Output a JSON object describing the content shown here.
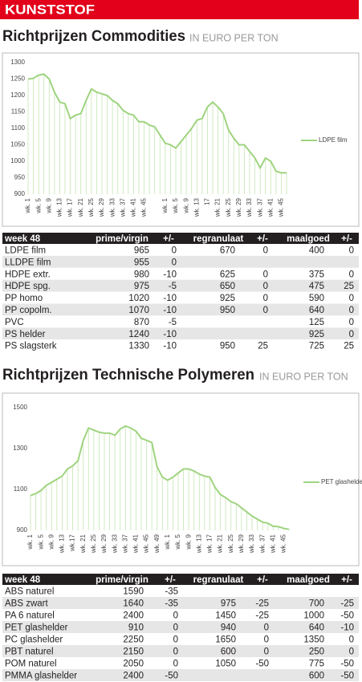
{
  "header": "KUNSTSTOF",
  "chart_data": [
    {
      "type": "line",
      "title": "Richtprijzen Commodities",
      "subtitle": "IN EURO PER TON",
      "categories": [
        "wk. 1",
        null,
        "wk. 5",
        null,
        "wk. 9",
        null,
        "wk. 13",
        null,
        "wk. 17",
        null,
        "wk. 21",
        null,
        "wk. 25",
        null,
        "wk. 29",
        null,
        "wk. 33",
        null,
        "wk. 37",
        null,
        "wk. 41",
        null,
        "wk. 45",
        null,
        null,
        null,
        "wk. 1",
        null,
        "wk. 5",
        null,
        "wk. 9",
        null,
        "wk. 13",
        null,
        "17",
        null,
        "wk. 21",
        null,
        "wk. 25",
        null,
        "wk. 29",
        null,
        "wk. 33",
        null,
        "wk. 37",
        null,
        "wk. 41",
        null,
        "wk. 45",
        null
      ],
      "series": [
        {
          "name": "LDPE film",
          "color": "#9fd47f",
          "values": [
            1250,
            1252,
            1262,
            1265,
            1250,
            1210,
            1180,
            1175,
            1130,
            1140,
            1145,
            1185,
            1220,
            1210,
            1205,
            1200,
            1185,
            1175,
            1155,
            1145,
            1140,
            1120,
            1120,
            1110,
            1105,
            1080,
            1055,
            1050,
            1040,
            1060,
            1080,
            1100,
            1125,
            1130,
            1165,
            1180,
            1165,
            1145,
            1095,
            1070,
            1050,
            1050,
            1030,
            1010,
            980,
            1010,
            1000,
            970,
            965,
            965
          ]
        }
      ],
      "ylim": [
        900,
        1300
      ],
      "yticks": [
        900,
        950,
        1000,
        1050,
        1100,
        1150,
        1200,
        1250,
        1300
      ],
      "legend": "right"
    },
    {
      "type": "line",
      "title": "Richtprijzen Technische Polymeren",
      "subtitle": "IN EURO PER TON",
      "categories": [
        "wk. 1",
        null,
        "wk. 5",
        null,
        "wk. 9",
        null,
        "wk. 13",
        null,
        "wk.17",
        null,
        "wk. 21",
        null,
        "wk. 25",
        null,
        "wk. 29",
        null,
        "wk. 33",
        null,
        "wk. 37",
        null,
        "wk. 41",
        null,
        "wk. 45",
        null,
        "wk. 49",
        null,
        "wk. 1",
        null,
        "wk. 5",
        null,
        "wk. 9",
        null,
        "wk. 13",
        null,
        "wk. 17",
        null,
        "wk. 21",
        null,
        "wk. 25",
        null,
        "wk. 29",
        null,
        "wk. 33",
        null,
        "wk. 37",
        null,
        "wk. 41",
        null,
        "wk. 45",
        null
      ],
      "series": [
        {
          "name": "PET glashelder",
          "color": "#9fd47f",
          "values": [
            1070,
            1080,
            1095,
            1120,
            1135,
            1150,
            1165,
            1200,
            1215,
            1240,
            1340,
            1400,
            1390,
            1380,
            1375,
            1375,
            1365,
            1395,
            1410,
            1400,
            1385,
            1350,
            1340,
            1330,
            1210,
            1160,
            1145,
            1160,
            1180,
            1200,
            1200,
            1190,
            1175,
            1165,
            1160,
            1110,
            1075,
            1060,
            1040,
            1030,
            1010,
            990,
            970,
            955,
            940,
            935,
            920,
            918,
            910,
            905
          ]
        }
      ],
      "ylim": [
        900,
        1500
      ],
      "yticks": [
        900,
        1100,
        1300,
        1500
      ],
      "legend": "right"
    }
  ],
  "tables": [
    {
      "columns": [
        "week 48",
        "prime/virgin",
        "+/-",
        "regranulaat",
        "+/-",
        "maalgoed",
        "+/-"
      ],
      "rows": [
        [
          "LDPE film",
          965,
          0,
          670,
          0,
          400,
          0
        ],
        [
          "LLDPE film",
          955,
          0,
          null,
          null,
          null,
          null
        ],
        [
          "HDPE extr.",
          980,
          -10,
          625,
          0,
          375,
          0
        ],
        [
          "HDPE spg.",
          975,
          -5,
          650,
          0,
          475,
          25
        ],
        [
          "PP homo",
          1020,
          -10,
          925,
          0,
          590,
          0
        ],
        [
          "PP copolm.",
          1070,
          -10,
          950,
          0,
          640,
          0
        ],
        [
          "PVC",
          870,
          -5,
          null,
          null,
          125,
          0
        ],
        [
          "PS helder",
          1240,
          -10,
          null,
          null,
          925,
          0
        ],
        [
          "PS slagsterk",
          1330,
          -10,
          950,
          25,
          725,
          25
        ]
      ]
    },
    {
      "columns": [
        "week 48",
        "prime/virgin",
        "+/-",
        "regranulaat",
        "+/-",
        "maalgoed",
        "+/-"
      ],
      "rows": [
        [
          "ABS naturel",
          1590,
          -35,
          null,
          null,
          null,
          null
        ],
        [
          "ABS zwart",
          1640,
          -35,
          975,
          -25,
          700,
          -25
        ],
        [
          "PA 6 naturel",
          2400,
          0,
          1450,
          -25,
          1000,
          -50
        ],
        [
          "PET glashelder",
          910,
          0,
          940,
          0,
          640,
          -10
        ],
        [
          "PC glashelder",
          2250,
          0,
          1650,
          0,
          1350,
          0
        ],
        [
          "PBT naturel",
          2150,
          0,
          600,
          0,
          250,
          0
        ],
        [
          "POM naturel",
          2050,
          0,
          1050,
          -50,
          775,
          -50
        ],
        [
          "PMMA glashelder",
          2400,
          -50,
          null,
          null,
          600,
          -50
        ]
      ]
    }
  ]
}
